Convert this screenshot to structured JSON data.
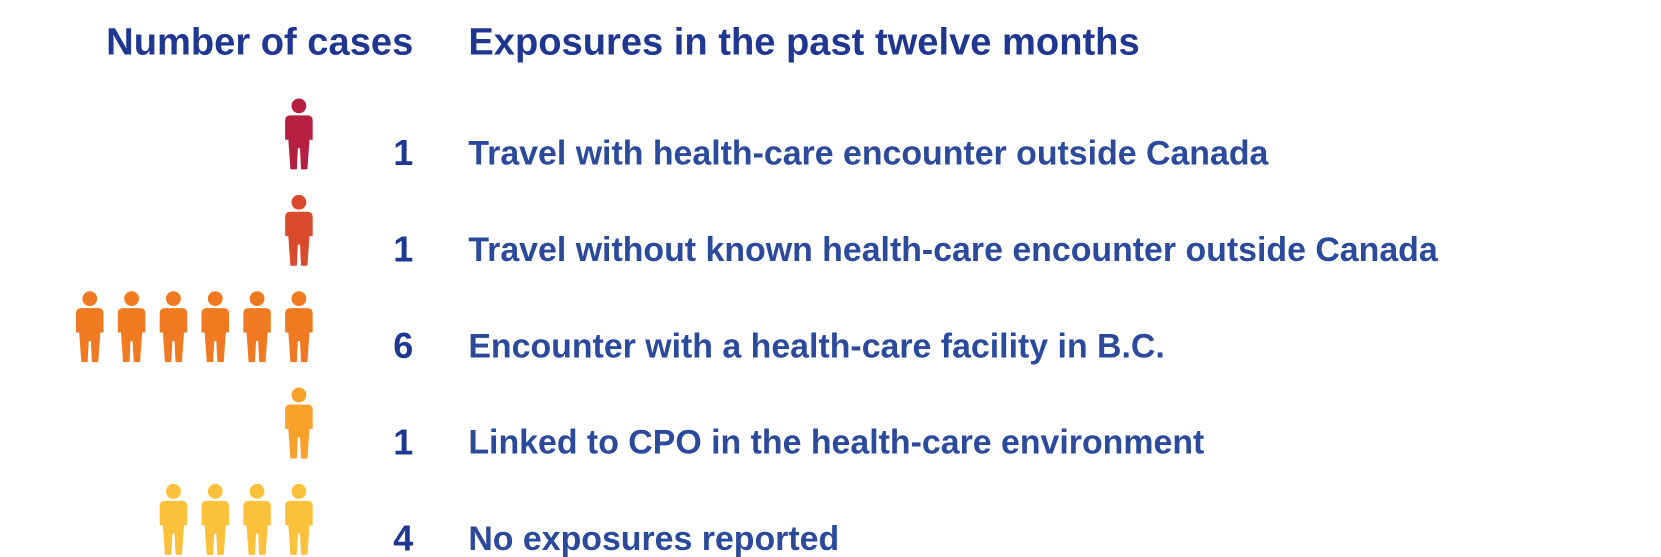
{
  "chart_data": {
    "type": "pictogram",
    "title": "Number of cases",
    "subtitle": "Exposures in the past twelve months",
    "categories": [
      "Travel with health-care encounter outside Canada",
      "Travel without known health-care encounter outside Canada",
      "Encounter with a health-care facility in B.C.",
      "Linked to CPO in the health-care environment",
      "No exposures reported"
    ],
    "values": [
      1,
      1,
      6,
      1,
      4
    ],
    "colors": [
      "#b51f40",
      "#d94a2c",
      "#f07a22",
      "#f7a02a",
      "#fbc13b"
    ]
  }
}
